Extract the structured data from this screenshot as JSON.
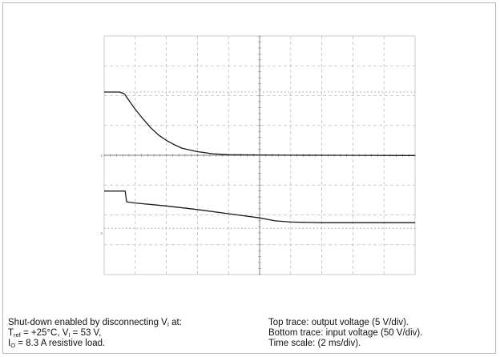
{
  "caption": {
    "left": {
      "line1_text": "Shut-down enabled by disconnecting V",
      "line1_sub": "I",
      "line1_tail": " at:",
      "line2_t": "T",
      "line2_tsub": "ref",
      "line2_mid": " = +25°C, V",
      "line2_vsub": "I",
      "line2_tail": " = 53 V,",
      "line3_i": "I",
      "line3_isub": "O",
      "line3_tail": " = 8.3 A resistive load."
    },
    "right": {
      "line1": "Top trace: output voltage (5 V/div).",
      "line2": "Bottom trace: input voltage (50 V/div).",
      "line3": "Time scale: (2 ms/div)."
    }
  },
  "chart_data": {
    "type": "line",
    "xlabel": "",
    "ylabel": "",
    "grid": true,
    "divisions": {
      "x": 10,
      "y": 8
    },
    "xlim": [
      0,
      20
    ],
    "x_unit": "ms",
    "series": [
      {
        "name": "",
        "unit": "V",
        "ref_div": 4,
        "volts_per_div": 5,
        "marker_label": "1",
        "x": [
          0,
          1,
          1.3,
          1.6,
          2,
          2.5,
          3,
          3.5,
          4,
          4.5,
          5,
          6,
          7,
          8,
          10,
          12,
          15,
          20
        ],
        "y": [
          10.6,
          10.6,
          10.3,
          9.2,
          7.7,
          6.1,
          4.6,
          3.4,
          2.5,
          1.8,
          1.2,
          0.6,
          0.25,
          0.1,
          0.05,
          0.02,
          0.0,
          -0.05
        ]
      },
      {
        "name": "",
        "unit": "V",
        "ref_div": 1.4,
        "volts_per_div": 50,
        "marker_label": "2",
        "x": [
          0,
          1.35,
          1.4,
          1.45,
          2,
          4,
          6,
          8,
          10,
          11,
          12,
          14,
          16,
          18,
          20
        ],
        "y": [
          70,
          70,
          60,
          52,
          50,
          45,
          39,
          32,
          25,
          20,
          18,
          17,
          17,
          17,
          17
        ]
      }
    ],
    "reference_lines": [
      {
        "series_index": 0,
        "y": 10.6
      },
      {
        "series_index": 1,
        "y": 7.5
      }
    ]
  }
}
